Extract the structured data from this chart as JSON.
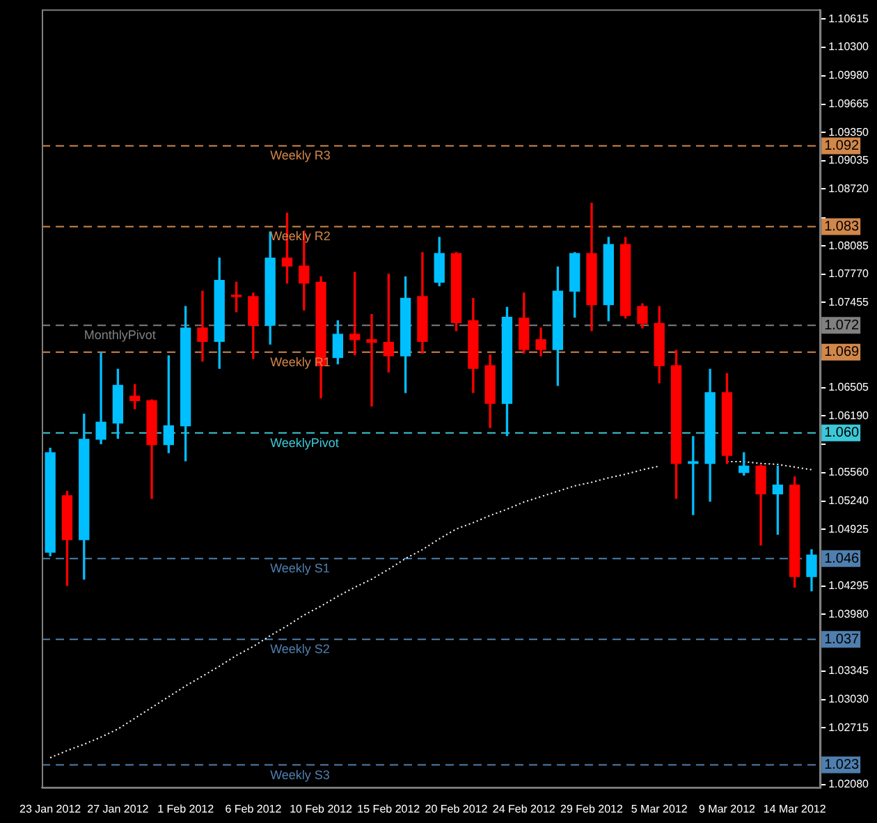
{
  "chart_data": {
    "type": "candlestick",
    "categories": [
      "23 Jan 2012",
      null,
      null,
      null,
      "27 Jan 2012",
      null,
      null,
      null,
      "1 Feb 2012",
      null,
      null,
      null,
      "6 Feb 2012",
      null,
      null,
      null,
      "10 Feb 2012",
      null,
      null,
      null,
      "15 Feb 2012",
      null,
      null,
      null,
      "20 Feb 2012",
      null,
      null,
      null,
      "24 Feb 2012",
      null,
      null,
      null,
      "29 Feb 2012",
      null,
      null,
      null,
      "5 Mar 2012",
      null,
      null,
      null,
      "9 Mar 2012",
      null,
      null,
      null,
      "14 Mar 2012",
      null
    ],
    "ohlc": [
      [
        1.0467,
        1.0583,
        1.0463,
        1.0578
      ],
      [
        1.053,
        1.0535,
        1.043,
        1.0481
      ],
      [
        1.0481,
        1.0621,
        1.0437,
        1.0593
      ],
      [
        1.0593,
        1.0689,
        1.0588,
        1.0612
      ],
      [
        1.0611,
        1.0671,
        1.0594,
        1.0653
      ],
      [
        1.0641,
        1.0654,
        1.0627,
        1.0636
      ],
      [
        1.0636,
        1.0637,
        1.0527,
        1.0587
      ],
      [
        1.0587,
        1.0686,
        1.0578,
        1.0608
      ],
      [
        1.0608,
        1.0741,
        1.0569,
        1.0717
      ],
      [
        1.0717,
        1.0758,
        1.068,
        1.0702
      ],
      [
        1.0702,
        1.0795,
        1.0672,
        1.077
      ],
      [
        1.0753,
        1.0768,
        1.0735,
        1.0752
      ],
      [
        1.0752,
        1.0756,
        1.0683,
        1.072
      ],
      [
        1.072,
        1.0824,
        1.0699,
        1.0795
      ],
      [
        1.0795,
        1.0845,
        1.0767,
        1.0786
      ],
      [
        1.0786,
        1.0825,
        1.0737,
        1.0767
      ],
      [
        1.0768,
        1.0774,
        1.0639,
        1.0675
      ],
      [
        1.0684,
        1.0725,
        1.0677,
        1.071
      ],
      [
        1.071,
        1.0779,
        1.0687,
        1.0704
      ],
      [
        1.0704,
        1.0732,
        1.063,
        1.0701
      ],
      [
        1.0701,
        1.0777,
        1.0668,
        1.0686
      ],
      [
        1.0686,
        1.0774,
        1.0645,
        1.075
      ],
      [
        1.0752,
        1.0801,
        1.0689,
        1.0702
      ],
      [
        1.0768,
        1.0818,
        1.0764,
        1.08
      ],
      [
        1.08,
        1.0801,
        1.0714,
        1.0723
      ],
      [
        1.0725,
        1.075,
        1.0645,
        1.0672
      ],
      [
        1.0675,
        1.0687,
        1.0606,
        1.0633
      ],
      [
        1.0633,
        1.074,
        1.0597,
        1.0729
      ],
      [
        1.0728,
        1.0756,
        1.0689,
        1.0693
      ],
      [
        1.0704,
        1.0717,
        1.0686,
        1.0693
      ],
      [
        1.0693,
        1.0785,
        1.0653,
        1.0758
      ],
      [
        1.0758,
        1.0801,
        1.0729,
        1.08
      ],
      [
        1.08,
        1.0856,
        1.0714,
        1.0743
      ],
      [
        1.0743,
        1.0818,
        1.0725,
        1.081
      ],
      [
        1.081,
        1.0818,
        1.0728,
        1.0731
      ],
      [
        1.0741,
        1.0744,
        1.0717,
        1.0722
      ],
      [
        1.0722,
        1.0741,
        1.0656,
        1.0675
      ],
      [
        1.0675,
        1.0692,
        1.0527,
        1.0566
      ],
      [
        1.0566,
        1.0596,
        1.0509,
        1.0568
      ],
      [
        1.0566,
        1.0671,
        1.0524,
        1.0645
      ],
      [
        1.0645,
        1.0666,
        1.0566,
        1.0575
      ],
      [
        1.0556,
        1.0578,
        1.0553,
        1.0563
      ],
      [
        1.0563,
        1.0564,
        1.0475,
        1.0532
      ],
      [
        1.0532,
        1.0563,
        1.0487,
        1.0542
      ],
      [
        1.0542,
        1.0551,
        1.0428,
        1.044
      ],
      [
        1.044,
        1.047,
        1.0424,
        1.0464
      ]
    ],
    "colors": [
      "#00bfff",
      "#ff0000",
      "#00bfff",
      "#00bfff",
      "#00bfff",
      "#ff0000",
      "#ff0000",
      "#00bfff",
      "#00bfff",
      "#ff0000",
      "#00bfff",
      "#ff0000",
      "#ff0000",
      "#00bfff",
      "#ff0000",
      "#ff0000",
      "#ff0000",
      "#00bfff",
      "#ff0000",
      "#ff0000",
      "#ff0000",
      "#00bfff",
      "#ff0000",
      "#00bfff",
      "#ff0000",
      "#ff0000",
      "#ff0000",
      "#00bfff",
      "#ff0000",
      "#ff0000",
      "#00bfff",
      "#00bfff",
      "#ff0000",
      "#00bfff",
      "#ff0000",
      "#ff0000",
      "#ff0000",
      "#ff0000",
      "#00bfff",
      "#00bfff",
      "#ff0000",
      "#00bfff",
      "#ff0000",
      "#00bfff",
      "#ff0000",
      "#00bfff"
    ],
    "series": [
      {
        "type": "line",
        "color": "#ffffff",
        "line_style": "dotted",
        "values": [
          1.0238,
          1.0246,
          1.0253,
          1.0261,
          1.027,
          1.0282,
          1.0294,
          1.0306,
          1.0318,
          1.0329,
          1.034,
          1.0352,
          1.0362,
          1.0374,
          1.0385,
          1.0397,
          1.0407,
          1.0418,
          1.0428,
          1.0437,
          1.0448,
          1.046,
          1.047,
          1.0482,
          1.0493,
          1.05,
          1.0508,
          1.0515,
          1.0523,
          1.0529,
          1.0535,
          1.0541,
          1.0545,
          1.055,
          1.0554,
          1.0559,
          1.0563,
          null,
          null,
          null,
          1.0568,
          1.0568,
          1.0566,
          1.0565,
          1.0562,
          1.0559
        ]
      }
    ],
    "ylim": [
      1.0205,
      1.1072
    ],
    "yticks": [
      {
        "value": 1.10615,
        "label": "1.10615"
      },
      {
        "value": 1.103,
        "label": "1.10300"
      },
      {
        "value": 1.0998,
        "label": "1.09980"
      },
      {
        "value": 1.09665,
        "label": "1.09665"
      },
      {
        "value": 1.0935,
        "label": "1.09350"
      },
      {
        "value": 1.09035,
        "label": "1.09035"
      },
      {
        "value": 1.0872,
        "label": "1.08720"
      },
      {
        "value": 1.084,
        "label": null
      },
      {
        "value": 1.08085,
        "label": "1.08085"
      },
      {
        "value": 1.0777,
        "label": "1.07770"
      },
      {
        "value": 1.07455,
        "label": "1.07455"
      },
      {
        "value": 1.0682,
        "label": null
      },
      {
        "value": 1.06505,
        "label": "1.06505"
      },
      {
        "value": 1.0619,
        "label": "1.06190"
      },
      {
        "value": 1.05875,
        "label": null
      },
      {
        "value": 1.0556,
        "label": "1.05560"
      },
      {
        "value": 1.0524,
        "label": "1.05240"
      },
      {
        "value": 1.04925,
        "label": "1.04925"
      },
      {
        "value": 1.04295,
        "label": "1.04295"
      },
      {
        "value": 1.0398,
        "label": "1.03980"
      },
      {
        "value": 1.03345,
        "label": "1.03345"
      },
      {
        "value": 1.0303,
        "label": "1.03030"
      },
      {
        "value": 1.02715,
        "label": "1.02715"
      },
      {
        "value": 1.0208,
        "label": "1.02080"
      }
    ],
    "annotations": [
      {
        "text": "1.092",
        "y": 1.092
      },
      {
        "text": "1.083",
        "y": 1.083
      },
      {
        "text": "1.072",
        "y": 1.072
      },
      {
        "text": "1.069",
        "y": 1.069
      },
      {
        "text": "1.060",
        "y": 1.06
      },
      {
        "text": "1.046",
        "y": 1.046
      },
      {
        "text": "1.037",
        "y": 1.037
      },
      {
        "text": "1.023",
        "y": 1.023
      }
    ],
    "ref_lines": [
      {
        "axis": "y",
        "value": 1.092,
        "label": "Weekly R3",
        "color": "#d2874a",
        "line_style": "dashed"
      },
      {
        "axis": "y",
        "value": 1.083,
        "label": "Weekly R2",
        "color": "#d2874a",
        "line_style": "dashed"
      },
      {
        "axis": "y",
        "value": 1.072,
        "label": "MonthlyPivot",
        "color": "#808080",
        "line_style": "dashed"
      },
      {
        "axis": "y",
        "value": 1.069,
        "label": "Weekly R1",
        "color": "#d2874a",
        "line_style": "dashed"
      },
      {
        "axis": "y",
        "value": 1.06,
        "label": "WeeklyPivot",
        "color": "#3cc8d8",
        "line_style": "dashed"
      },
      {
        "axis": "y",
        "value": 1.046,
        "label": "Weekly S1",
        "color": "#4f7fae",
        "line_style": "dashed"
      },
      {
        "axis": "y",
        "value": 1.037,
        "label": "Weekly S2",
        "color": "#4f7fae",
        "line_style": "dashed"
      },
      {
        "axis": "y",
        "value": 1.023,
        "label": "Weekly S3",
        "color": "#4f7fae",
        "line_style": "dashed"
      }
    ]
  }
}
